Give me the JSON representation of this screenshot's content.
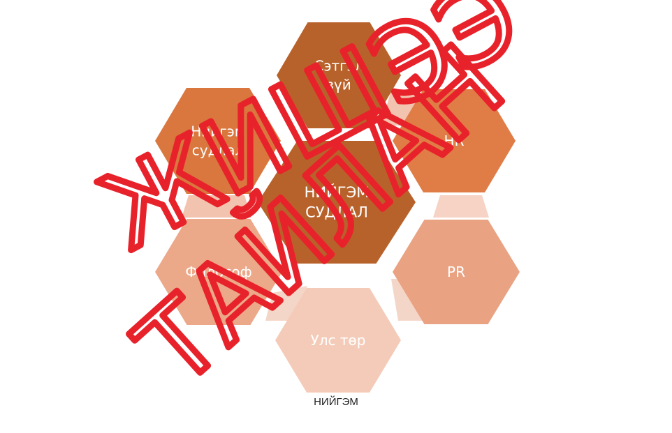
{
  "diagram": {
    "hexagons": [
      {
        "id": "center",
        "lines": [
          "НИЙГЭМ",
          "СУДЛАЛ"
        ],
        "color": "#b8622b"
      },
      {
        "id": "top",
        "lines": [
          "Сэтгэл",
          "зүй"
        ],
        "color": "#b8622b"
      },
      {
        "id": "upper-left",
        "lines": [
          "Нийгэм",
          "судлал"
        ],
        "color": "#d9773e"
      },
      {
        "id": "upper-right",
        "lines": [
          "HR"
        ],
        "color": "#e07d46"
      },
      {
        "id": "lower-left",
        "lines": [
          "Философ"
        ],
        "color": "#eca98a"
      },
      {
        "id": "lower-right",
        "lines": [
          "PR"
        ],
        "color": "#e9a282"
      },
      {
        "id": "bottom",
        "lines": [
          "Улс төр"
        ],
        "color": "#f4cbb8"
      }
    ],
    "caption": "НИЙГЭМ"
  },
  "watermark": {
    "line1": "ЖИШЭЭ",
    "line2": "ТАЙЛАН",
    "color": "#e8222a"
  }
}
